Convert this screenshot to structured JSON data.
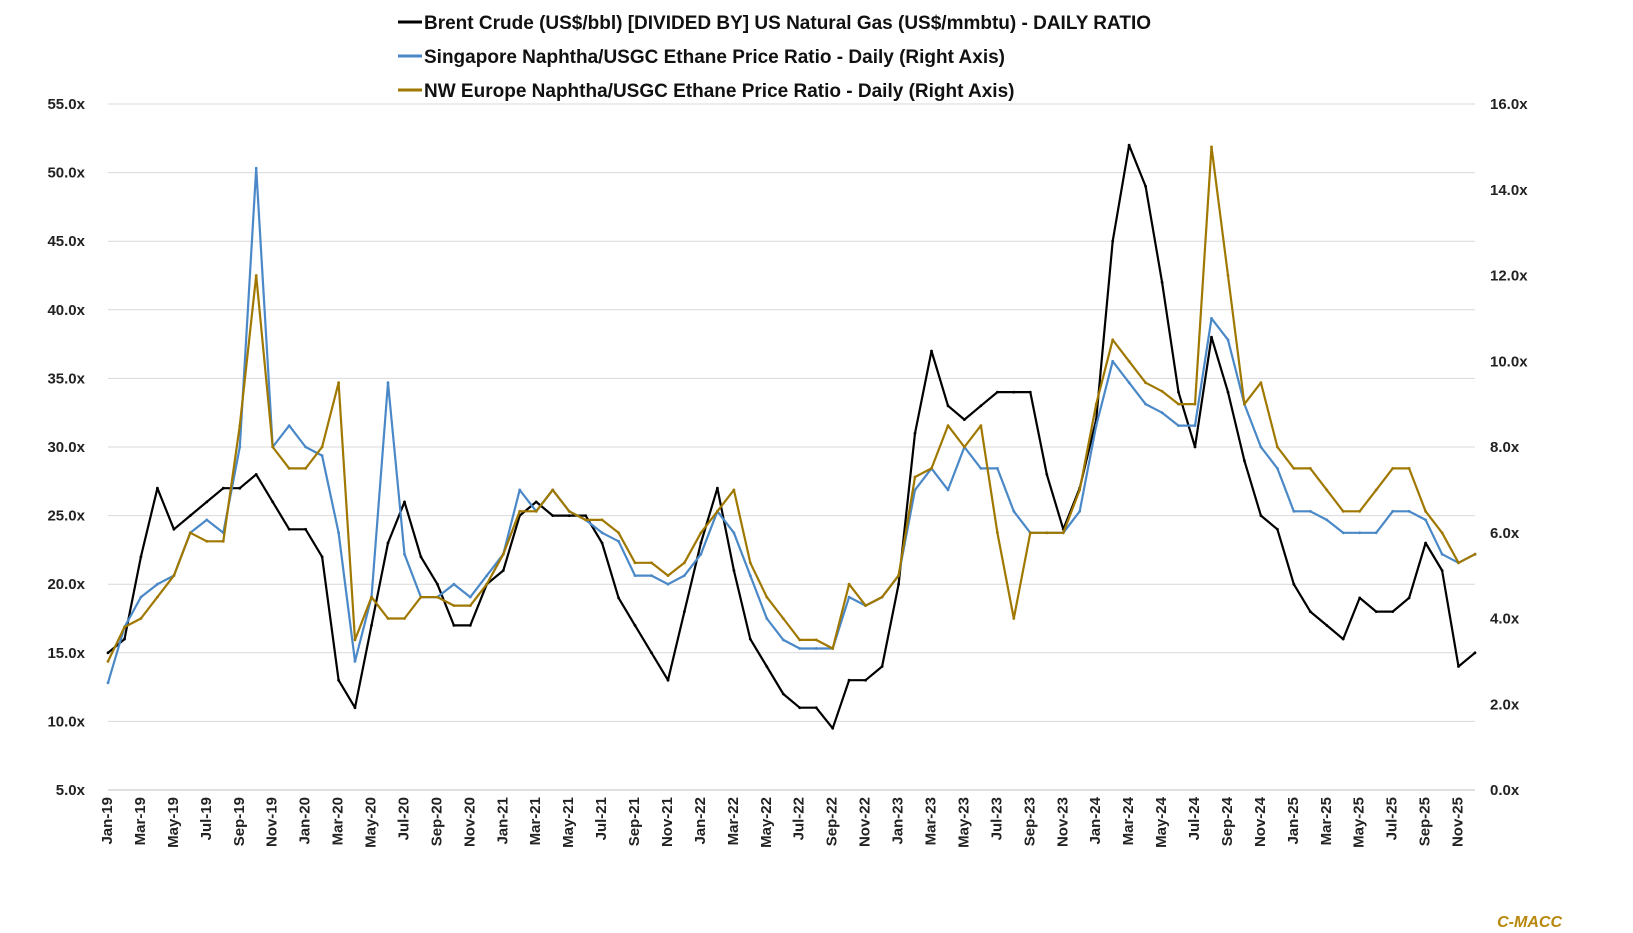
{
  "chart_data": {
    "type": "line",
    "title": "",
    "legend_position": "top-center",
    "grid": true,
    "source_label": "C-MACC",
    "y_left": {
      "min": 5,
      "max": 55,
      "step": 5,
      "tick_labels": [
        "5.0x",
        "10.0x",
        "15.0x",
        "20.0x",
        "25.0x",
        "30.0x",
        "35.0x",
        "40.0x",
        "45.0x",
        "50.0x",
        "55.0x"
      ]
    },
    "y_right": {
      "min": 0,
      "max": 16,
      "step": 2,
      "tick_labels": [
        "0.0x",
        "2.0x",
        "4.0x",
        "6.0x",
        "8.0x",
        "10.0x",
        "12.0x",
        "14.0x",
        "16.0x"
      ]
    },
    "x_tick_labels": [
      "Jan-19",
      "Feb-19",
      "Mar-19",
      "Apr-19",
      "May-19",
      "Jun-19",
      "Jul-19",
      "Aug-19",
      "Sep-19",
      "Oct-19",
      "Nov-19",
      "Dec-19",
      "Jan-20",
      "Feb-20",
      "Mar-20",
      "Apr-20",
      "May-20",
      "Jun-20",
      "Jul-20",
      "Aug-20",
      "Sep-20",
      "Oct-20",
      "Nov-20",
      "Dec-20",
      "Jan-21",
      "Feb-21",
      "Mar-21",
      "Apr-21",
      "May-21",
      "Jun-21",
      "Jul-21",
      "Aug-21",
      "Sep-21",
      "Oct-21",
      "Nov-21",
      "Dec-21",
      "Jan-22",
      "Feb-22",
      "Mar-22",
      "Apr-22",
      "May-22",
      "Jun-22",
      "Jul-22",
      "Aug-22",
      "Sep-22",
      "Oct-22",
      "Nov-22",
      "Dec-22",
      "Jan-23",
      "Feb-23",
      "Mar-23",
      "Apr-23",
      "May-23",
      "Jun-23",
      "Jul-23",
      "Aug-23",
      "Sep-23",
      "Oct-23",
      "Nov-23",
      "Dec-23",
      "Jan-24",
      "Feb-24",
      "Mar-24",
      "Apr-24",
      "May-24",
      "Jun-24",
      "Jul-24",
      "Aug-24",
      "Sep-24",
      "Oct-24",
      "Nov-24",
      "Dec-24",
      "Jan-25",
      "Feb-25",
      "Mar-25",
      "Apr-25",
      "May-25",
      "Jun-25",
      "Jul-25",
      "Aug-25",
      "Sep-25",
      "Oct-25",
      "Nov-25",
      "Dec-25"
    ],
    "x_tick_every": 2,
    "series": [
      {
        "name": "Brent Crude (US$/bbl) [DIVIDED BY] US Natural Gas (US$/mmbtu) - DAILY RATIO",
        "axis": "left",
        "color": "#000000",
        "x": [
          "Jan-19",
          "Feb-19",
          "Mar-19",
          "Apr-19",
          "May-19",
          "Jun-19",
          "Jul-19",
          "Aug-19",
          "Sep-19",
          "Oct-19",
          "Nov-19",
          "Dec-19",
          "Jan-20",
          "Feb-20",
          "Mar-20",
          "Apr-20",
          "May-20",
          "Jun-20",
          "Jul-20",
          "Aug-20",
          "Sep-20",
          "Oct-20",
          "Nov-20",
          "Dec-20",
          "Jan-21",
          "Feb-21",
          "Mar-21",
          "Apr-21",
          "May-21",
          "Jun-21",
          "Jul-21",
          "Aug-21",
          "Sep-21",
          "Oct-21",
          "Nov-21",
          "Dec-21",
          "Jan-22",
          "Feb-22",
          "Mar-22",
          "Apr-22",
          "May-22",
          "Jun-22",
          "Jul-22",
          "Aug-22",
          "Sep-22",
          "Oct-22",
          "Nov-22",
          "Dec-22",
          "Jan-23",
          "Feb-23",
          "Mar-23",
          "Apr-23",
          "May-23",
          "Jun-23",
          "Jul-23",
          "Aug-23",
          "Sep-23",
          "Oct-23",
          "Nov-23",
          "Dec-23",
          "Jan-24",
          "Feb-24",
          "Mar-24",
          "Apr-24",
          "May-24",
          "Jun-24",
          "Jul-24",
          "Aug-24",
          "Sep-24",
          "Oct-24",
          "Nov-24",
          "Dec-24",
          "Jan-25",
          "Feb-25",
          "Mar-25",
          "Apr-25",
          "May-25",
          "Jun-25",
          "Jul-25",
          "Aug-25",
          "Sep-25",
          "Oct-25",
          "Nov-25",
          "Dec-25"
        ],
        "values": [
          15,
          16,
          22,
          27,
          24,
          25,
          26,
          27,
          27,
          28,
          26,
          24,
          24,
          22,
          13,
          11,
          17,
          23,
          26,
          22,
          20,
          17,
          17,
          20,
          21,
          25,
          26,
          25,
          25,
          25,
          23,
          19,
          17,
          15,
          13,
          18,
          23,
          27,
          21,
          16,
          14,
          12,
          11,
          11,
          9.5,
          13,
          13,
          14,
          20,
          31,
          37,
          33,
          32,
          33,
          34,
          34,
          34,
          28,
          24,
          27,
          32,
          45,
          52,
          49,
          42,
          34,
          30,
          38,
          34,
          29,
          25,
          24,
          20,
          18,
          17,
          16,
          19,
          18,
          18,
          19,
          23,
          21,
          14,
          15
        ]
      },
      {
        "name": "Singapore Naphtha/USGC Ethane Price Ratio - Daily (Right Axis)",
        "axis": "right",
        "color": "#4a88c7",
        "x": [
          "Jan-19",
          "Feb-19",
          "Mar-19",
          "Apr-19",
          "May-19",
          "Jun-19",
          "Jul-19",
          "Aug-19",
          "Sep-19",
          "Oct-19",
          "Nov-19",
          "Dec-19",
          "Jan-20",
          "Feb-20",
          "Mar-20",
          "Apr-20",
          "May-20",
          "Jun-20",
          "Jul-20",
          "Aug-20",
          "Sep-20",
          "Oct-20",
          "Nov-20",
          "Dec-20",
          "Jan-21",
          "Feb-21",
          "Mar-21",
          "Apr-21",
          "May-21",
          "Jun-21",
          "Jul-21",
          "Aug-21",
          "Sep-21",
          "Oct-21",
          "Nov-21",
          "Dec-21",
          "Jan-22",
          "Feb-22",
          "Mar-22",
          "Apr-22",
          "May-22",
          "Jun-22",
          "Jul-22",
          "Aug-22",
          "Sep-22",
          "Oct-22",
          "Nov-22",
          "Dec-22",
          "Jan-23",
          "Feb-23",
          "Mar-23",
          "Apr-23",
          "May-23",
          "Jun-23",
          "Jul-23",
          "Aug-23",
          "Sep-23",
          "Oct-23",
          "Nov-23",
          "Dec-23",
          "Jan-24",
          "Feb-24",
          "Mar-24",
          "Apr-24",
          "May-24",
          "Jun-24",
          "Jul-24",
          "Aug-24",
          "Sep-24",
          "Oct-24",
          "Nov-24",
          "Dec-24",
          "Jan-25",
          "Feb-25",
          "Mar-25",
          "Apr-25",
          "May-25",
          "Jun-25",
          "Jul-25",
          "Aug-25",
          "Sep-25",
          "Oct-25",
          "Nov-25",
          "Dec-25"
        ],
        "values": [
          2.5,
          3.8,
          4.5,
          4.8,
          5.0,
          6.0,
          6.3,
          6.0,
          8.0,
          14.5,
          8.0,
          8.5,
          8.0,
          7.8,
          6.0,
          3.0,
          4.5,
          9.5,
          5.5,
          4.5,
          4.5,
          4.8,
          4.5,
          5.0,
          5.5,
          7.0,
          6.5,
          7.0,
          6.5,
          6.3,
          6.0,
          5.8,
          5.0,
          5.0,
          4.8,
          5.0,
          5.5,
          6.5,
          6.0,
          5.0,
          4.0,
          3.5,
          3.3,
          3.3,
          3.3,
          4.5,
          4.3,
          4.5,
          5.0,
          7.0,
          7.5,
          7.0,
          8.0,
          7.5,
          7.5,
          6.5,
          6.0,
          6.0,
          6.0,
          6.5,
          8.5,
          10.0,
          9.5,
          9.0,
          8.8,
          8.5,
          8.5,
          11.0,
          10.5,
          9.0,
          8.0,
          7.5,
          6.5,
          6.5,
          6.3,
          6.0,
          6.0,
          6.0,
          6.5,
          6.5,
          6.3,
          5.5,
          5.3,
          5.5
        ]
      },
      {
        "name": "NW Europe Naphtha/USGC Ethane Price Ratio - Daily (Right Axis)",
        "axis": "right",
        "color": "#a07800",
        "x": [
          "Jan-19",
          "Feb-19",
          "Mar-19",
          "Apr-19",
          "May-19",
          "Jun-19",
          "Jul-19",
          "Aug-19",
          "Sep-19",
          "Oct-19",
          "Nov-19",
          "Dec-19",
          "Jan-20",
          "Feb-20",
          "Mar-20",
          "Apr-20",
          "May-20",
          "Jun-20",
          "Jul-20",
          "Aug-20",
          "Sep-20",
          "Oct-20",
          "Nov-20",
          "Dec-20",
          "Jan-21",
          "Feb-21",
          "Mar-21",
          "Apr-21",
          "May-21",
          "Jun-21",
          "Jul-21",
          "Aug-21",
          "Sep-21",
          "Oct-21",
          "Nov-21",
          "Dec-21",
          "Jan-22",
          "Feb-22",
          "Mar-22",
          "Apr-22",
          "May-22",
          "Jun-22",
          "Jul-22",
          "Aug-22",
          "Sep-22",
          "Oct-22",
          "Nov-22",
          "Dec-22",
          "Jan-23",
          "Feb-23",
          "Mar-23",
          "Apr-23",
          "May-23",
          "Jun-23",
          "Jul-23",
          "Aug-23",
          "Sep-23",
          "Oct-23",
          "Nov-23",
          "Dec-23",
          "Jan-24",
          "Feb-24",
          "Mar-24",
          "Apr-24",
          "May-24",
          "Jun-24",
          "Jul-24",
          "Aug-24",
          "Sep-24",
          "Oct-24",
          "Nov-24",
          "Dec-24",
          "Jan-25",
          "Feb-25",
          "Mar-25",
          "Apr-25",
          "May-25",
          "Jun-25",
          "Jul-25",
          "Aug-25",
          "Sep-25",
          "Oct-25",
          "Nov-25",
          "Dec-25"
        ],
        "values": [
          3.0,
          3.8,
          4.0,
          4.5,
          5.0,
          6.0,
          5.8,
          5.8,
          8.5,
          12.0,
          8.0,
          7.5,
          7.5,
          8.0,
          9.5,
          3.5,
          4.5,
          4.0,
          4.0,
          4.5,
          4.5,
          4.3,
          4.3,
          4.8,
          5.5,
          6.5,
          6.5,
          7.0,
          6.5,
          6.3,
          6.3,
          6.0,
          5.3,
          5.3,
          5.0,
          5.3,
          6.0,
          6.5,
          7.0,
          5.3,
          4.5,
          4.0,
          3.5,
          3.5,
          3.3,
          4.8,
          4.3,
          4.5,
          5.0,
          7.3,
          7.5,
          8.5,
          8.0,
          8.5,
          6.0,
          4.0,
          6.0,
          6.0,
          6.0,
          7.0,
          9.0,
          10.5,
          10.0,
          9.5,
          9.3,
          9.0,
          9.0,
          15.0,
          12.0,
          9.0,
          9.5,
          8.0,
          7.5,
          7.5,
          7.0,
          6.5,
          6.5,
          7.0,
          7.5,
          7.5,
          6.5,
          6.0,
          5.3,
          5.5
        ]
      }
    ]
  }
}
